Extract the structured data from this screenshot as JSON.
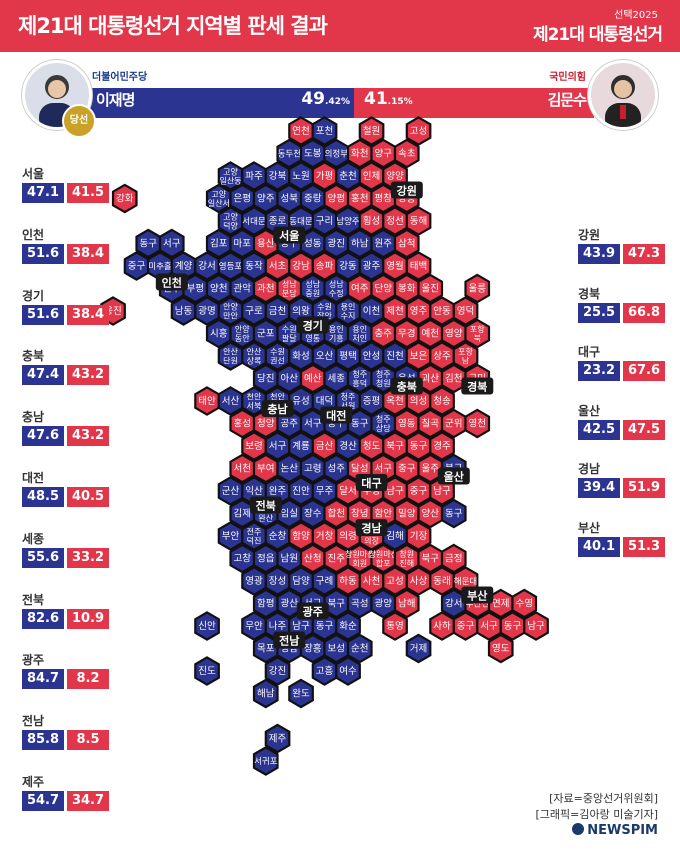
{
  "header": {
    "title": "제21대 대통령선거 지역별 판세 결과",
    "kicker": "선택2025",
    "brand": "제21대 대통령선거"
  },
  "candidates": {
    "left": {
      "party": "더불어민주당",
      "name": "이재명",
      "pct_int": "49",
      "pct_dec": ".42",
      "pct_unit": "%",
      "winner_badge": "당선"
    },
    "right": {
      "party": "국민의힘",
      "name": "김문수",
      "pct_int": "41",
      "pct_dec": ".15",
      "pct_unit": "%"
    }
  },
  "colors": {
    "dem": "#2b3591",
    "ppp": "#e2374a",
    "border": "#111111"
  },
  "regions_left": [
    {
      "name": "서울",
      "dem": "47.1",
      "ppp": "41.5"
    },
    {
      "name": "인천",
      "dem": "51.6",
      "ppp": "38.4"
    },
    {
      "name": "경기",
      "dem": "51.6",
      "ppp": "38.4"
    },
    {
      "name": "충북",
      "dem": "47.4",
      "ppp": "43.2"
    },
    {
      "name": "충남",
      "dem": "47.6",
      "ppp": "43.2"
    },
    {
      "name": "대전",
      "dem": "48.5",
      "ppp": "40.5"
    },
    {
      "name": "세종",
      "dem": "55.6",
      "ppp": "33.2"
    },
    {
      "name": "전북",
      "dem": "82.6",
      "ppp": "10.9"
    },
    {
      "name": "광주",
      "dem": "84.7",
      "ppp": "8.2"
    },
    {
      "name": "전남",
      "dem": "85.8",
      "ppp": "8.5"
    },
    {
      "name": "제주",
      "dem": "54.7",
      "ppp": "34.7"
    }
  ],
  "regions_right": [
    {
      "name": "강원",
      "dem": "43.9",
      "ppp": "47.3"
    },
    {
      "name": "경북",
      "dem": "25.5",
      "ppp": "66.8"
    },
    {
      "name": "대구",
      "dem": "23.2",
      "ppp": "67.6"
    },
    {
      "name": "울산",
      "dem": "42.5",
      "ppp": "47.5"
    },
    {
      "name": "경남",
      "dem": "39.4",
      "ppp": "51.9"
    },
    {
      "name": "부산",
      "dem": "40.1",
      "ppp": "51.3"
    }
  ],
  "map_labels": [
    "인천",
    "서울",
    "강원",
    "경기",
    "충북",
    "경북",
    "충남",
    "대전",
    "대구",
    "울산",
    "전북",
    "경남",
    "부산",
    "광주",
    "전남"
  ],
  "hexes": [
    [
      "연천",
      "r",
      0,
      10
    ],
    [
      "포천",
      "d",
      0,
      11
    ],
    [
      "철원",
      "r",
      0,
      13
    ],
    [
      "고성",
      "r",
      0,
      15
    ],
    [
      "동두천",
      "d",
      1,
      9.5
    ],
    [
      "도봉",
      "d",
      1,
      10.5
    ],
    [
      "의정부",
      "d",
      1,
      11.5
    ],
    [
      "화천",
      "r",
      1,
      12.5
    ],
    [
      "양구",
      "r",
      1,
      13.5
    ],
    [
      "속초",
      "r",
      1,
      14.5
    ],
    [
      "고양\n일산동",
      "d",
      2,
      7
    ],
    [
      "파주",
      "d",
      2,
      8
    ],
    [
      "강북",
      "d",
      2,
      9
    ],
    [
      "노원",
      "d",
      2,
      10
    ],
    [
      "가평",
      "r",
      2,
      11
    ],
    [
      "춘천",
      "d",
      2,
      12
    ],
    [
      "인제",
      "r",
      2,
      13
    ],
    [
      "양양",
      "r",
      2,
      14
    ],
    [
      "강화",
      "r",
      3,
      2.5
    ],
    [
      "고양\n일산서",
      "d",
      3,
      6.5
    ],
    [
      "은평",
      "d",
      3,
      7.5
    ],
    [
      "양주",
      "d",
      3,
      8.5
    ],
    [
      "성북",
      "d",
      3,
      9.5
    ],
    [
      "중랑",
      "d",
      3,
      10.5
    ],
    [
      "양평",
      "r",
      3,
      11.5
    ],
    [
      "홍천",
      "r",
      3,
      12.5
    ],
    [
      "평창",
      "r",
      3,
      13.5
    ],
    [
      "강릉",
      "r",
      3,
      14.5
    ],
    [
      "고양\n덕양",
      "d",
      4,
      7
    ],
    [
      "서대문",
      "d",
      4,
      8
    ],
    [
      "종로",
      "d",
      4,
      9
    ],
    [
      "동대문",
      "d",
      4,
      10
    ],
    [
      "구리",
      "d",
      4,
      11
    ],
    [
      "남양주",
      "d",
      4,
      12
    ],
    [
      "횡성",
      "r",
      4,
      13
    ],
    [
      "정선",
      "r",
      4,
      14
    ],
    [
      "동해",
      "r",
      4,
      15
    ],
    [
      "동구",
      "d",
      5,
      3.5
    ],
    [
      "서구",
      "d",
      5,
      4.5
    ],
    [
      "김포",
      "d",
      5,
      6.5
    ],
    [
      "마포",
      "d",
      5,
      7.5
    ],
    [
      "용산",
      "r",
      5,
      8.5
    ],
    [
      "중구",
      "d",
      5,
      9.5
    ],
    [
      "성동",
      "d",
      5,
      10.5
    ],
    [
      "광진",
      "d",
      5,
      11.5
    ],
    [
      "하남",
      "d",
      5,
      12.5
    ],
    [
      "원주",
      "d",
      5,
      13.5
    ],
    [
      "삼척",
      "r",
      5,
      14.5
    ],
    [
      "중구",
      "d",
      6,
      3
    ],
    [
      "미추홀",
      "d",
      6,
      4
    ],
    [
      "계양",
      "d",
      6,
      5
    ],
    [
      "강서",
      "d",
      6,
      6
    ],
    [
      "영등포",
      "d",
      6,
      7
    ],
    [
      "동작",
      "d",
      6,
      8
    ],
    [
      "서초",
      "r",
      6,
      9
    ],
    [
      "강남",
      "r",
      6,
      10
    ],
    [
      "송파",
      "r",
      6,
      11
    ],
    [
      "강동",
      "d",
      6,
      12
    ],
    [
      "광주",
      "d",
      6,
      13
    ],
    [
      "영월",
      "r",
      6,
      14
    ],
    [
      "태백",
      "r",
      6,
      15
    ],
    [
      "연수",
      "d",
      7,
      4.5
    ],
    [
      "부평",
      "d",
      7,
      5.5
    ],
    [
      "양천",
      "d",
      7,
      6.5
    ],
    [
      "관악",
      "d",
      7,
      7.5
    ],
    [
      "과천",
      "r",
      7,
      8.5
    ],
    [
      "성남\n분당",
      "r",
      7,
      9.5
    ],
    [
      "성남\n중원",
      "d",
      7,
      10.5
    ],
    [
      "성남\n수정",
      "d",
      7,
      11.5
    ],
    [
      "여주",
      "r",
      7,
      12.5
    ],
    [
      "단양",
      "r",
      7,
      13.5
    ],
    [
      "봉화",
      "r",
      7,
      14.5
    ],
    [
      "울진",
      "r",
      7,
      15.5
    ],
    [
      "울릉",
      "r",
      7,
      17.5
    ],
    [
      "옹진",
      "r",
      8,
      2
    ],
    [
      "남동",
      "d",
      8,
      5
    ],
    [
      "광명",
      "d",
      8,
      6
    ],
    [
      "안양\n만안",
      "d",
      8,
      7
    ],
    [
      "구로",
      "d",
      8,
      8
    ],
    [
      "금천",
      "d",
      8,
      9
    ],
    [
      "의왕",
      "d",
      8,
      10
    ],
    [
      "수원\n장안",
      "d",
      8,
      11
    ],
    [
      "용인\n수지",
      "d",
      8,
      12
    ],
    [
      "이천",
      "d",
      8,
      13
    ],
    [
      "제천",
      "r",
      8,
      14
    ],
    [
      "영주",
      "r",
      8,
      15
    ],
    [
      "안동",
      "r",
      8,
      16
    ],
    [
      "영덕",
      "r",
      8,
      17
    ],
    [
      "시흥",
      "d",
      9,
      6.5
    ],
    [
      "안양\n동안",
      "d",
      9,
      7.5
    ],
    [
      "군포",
      "d",
      9,
      8.5
    ],
    [
      "수원\n팔달",
      "d",
      9,
      9.5
    ],
    [
      "수원\n영통",
      "d",
      9,
      10.5
    ],
    [
      "용인\n기흥",
      "d",
      9,
      11.5
    ],
    [
      "용인\n처인",
      "d",
      9,
      12.5
    ],
    [
      "충주",
      "r",
      9,
      13.5
    ],
    [
      "무경",
      "r",
      9,
      14.5
    ],
    [
      "예천",
      "r",
      9,
      15.5
    ],
    [
      "영양",
      "r",
      9,
      16.5
    ],
    [
      "포항\n북",
      "r",
      9,
      17.5
    ],
    [
      "안산\n단원",
      "d",
      10,
      7
    ],
    [
      "안산\n상록",
      "d",
      10,
      8
    ],
    [
      "수원\n권선",
      "d",
      10,
      9
    ],
    [
      "화성",
      "d",
      10,
      10
    ],
    [
      "오산",
      "d",
      10,
      11
    ],
    [
      "평택",
      "d",
      10,
      12
    ],
    [
      "안성",
      "d",
      10,
      13
    ],
    [
      "진천",
      "d",
      10,
      14
    ],
    [
      "보은",
      "r",
      10,
      15
    ],
    [
      "상주",
      "r",
      10,
      16
    ],
    [
      "포항\n남",
      "r",
      10,
      17
    ],
    [
      "당진",
      "d",
      11,
      8.5
    ],
    [
      "아산",
      "d",
      11,
      9.5
    ],
    [
      "예산",
      "r",
      11,
      10.5
    ],
    [
      "세종",
      "d",
      11,
      11.5
    ],
    [
      "청주\n흥덕",
      "d",
      11,
      12.5
    ],
    [
      "청주\n청원",
      "d",
      11,
      13.5
    ],
    [
      "음성",
      "d",
      11,
      14.5
    ],
    [
      "괴산",
      "r",
      11,
      15.5
    ],
    [
      "김천",
      "r",
      11,
      16.5
    ],
    [
      "구미",
      "r",
      11,
      17.5
    ],
    [
      "태안",
      "r",
      12,
      6
    ],
    [
      "서산",
      "d",
      12,
      7
    ],
    [
      "천안\n서북",
      "d",
      12,
      8
    ],
    [
      "천안\n동남",
      "d",
      12,
      9
    ],
    [
      "유성",
      "d",
      12,
      10
    ],
    [
      "대덕",
      "d",
      12,
      11
    ],
    [
      "청주\n서원",
      "d",
      12,
      12
    ],
    [
      "증평",
      "d",
      12,
      13
    ],
    [
      "옥천",
      "r",
      12,
      14
    ],
    [
      "의성",
      "r",
      12,
      15
    ],
    [
      "청송",
      "r",
      12,
      16
    ],
    [
      "홍성",
      "r",
      13,
      7.5
    ],
    [
      "청양",
      "r",
      13,
      8.5
    ],
    [
      "공주",
      "d",
      13,
      9.5
    ],
    [
      "서구",
      "d",
      13,
      10.5
    ],
    [
      "중구",
      "d",
      13,
      11.5
    ],
    [
      "동구",
      "d",
      13,
      12.5
    ],
    [
      "청주\n상당",
      "d",
      13,
      13.5
    ],
    [
      "영동",
      "r",
      13,
      14.5
    ],
    [
      "칠곡",
      "r",
      13,
      15.5
    ],
    [
      "군위",
      "r",
      13,
      16.5
    ],
    [
      "영천",
      "r",
      13,
      17.5
    ],
    [
      "보령",
      "r",
      14,
      8
    ],
    [
      "서구",
      "d",
      14,
      9
    ],
    [
      "계룡",
      "d",
      14,
      10
    ],
    [
      "금산",
      "r",
      14,
      11
    ],
    [
      "경산",
      "d",
      14,
      12
    ],
    [
      "청도",
      "r",
      14,
      13
    ],
    [
      "북구",
      "r",
      14,
      14
    ],
    [
      "동구",
      "r",
      14,
      15
    ],
    [
      "경주",
      "r",
      14,
      16
    ],
    [
      "서천",
      "r",
      15,
      7.5
    ],
    [
      "부여",
      "r",
      15,
      8.5
    ],
    [
      "논산",
      "d",
      15,
      9.5
    ],
    [
      "고령",
      "d",
      15,
      10.5
    ],
    [
      "성주",
      "d",
      15,
      11.5
    ],
    [
      "달성",
      "r",
      15,
      12.5
    ],
    [
      "서구",
      "r",
      15,
      13.5
    ],
    [
      "중구",
      "r",
      15,
      14.5
    ],
    [
      "울주",
      "r",
      15,
      15.5
    ],
    [
      "북구",
      "d",
      15,
      16.5
    ],
    [
      "군산",
      "d",
      16,
      7
    ],
    [
      "익산",
      "d",
      16,
      8
    ],
    [
      "완주",
      "d",
      16,
      9
    ],
    [
      "진안",
      "d",
      16,
      10
    ],
    [
      "무주",
      "d",
      16,
      11
    ],
    [
      "달서",
      "r",
      16,
      12
    ],
    [
      "수성",
      "r",
      16,
      13
    ],
    [
      "남구",
      "r",
      16,
      14
    ],
    [
      "중구",
      "r",
      16,
      15
    ],
    [
      "남구",
      "r",
      16,
      16
    ],
    [
      "김제",
      "d",
      17,
      7.5
    ],
    [
      "전주\n완산",
      "d",
      17,
      8.5
    ],
    [
      "임실",
      "d",
      17,
      9.5
    ],
    [
      "장수",
      "d",
      17,
      10.5
    ],
    [
      "합천",
      "r",
      17,
      11.5
    ],
    [
      "창녕",
      "r",
      17,
      12.5
    ],
    [
      "함안",
      "r",
      17,
      13.5
    ],
    [
      "밀양",
      "r",
      17,
      14.5
    ],
    [
      "양산",
      "r",
      17,
      15.5
    ],
    [
      "동구",
      "d",
      17,
      16.5
    ],
    [
      "부안",
      "d",
      18,
      7
    ],
    [
      "전주\n덕진",
      "d",
      18,
      8
    ],
    [
      "순창",
      "d",
      18,
      9
    ],
    [
      "함양",
      "r",
      18,
      10
    ],
    [
      "거창",
      "r",
      18,
      11
    ],
    [
      "의령",
      "r",
      18,
      12
    ],
    [
      "창원\n의창",
      "r",
      18,
      13
    ],
    [
      "김해",
      "d",
      18,
      14
    ],
    [
      "기장",
      "r",
      18,
      15
    ],
    [
      "고창",
      "d",
      19,
      7.5
    ],
    [
      "정읍",
      "d",
      19,
      8.5
    ],
    [
      "남원",
      "d",
      19,
      9.5
    ],
    [
      "산청",
      "r",
      19,
      10.5
    ],
    [
      "진주",
      "r",
      19,
      11.5
    ],
    [
      "창원마산\n회원",
      "r",
      19,
      12.5
    ],
    [
      "창원마산\n합포",
      "r",
      19,
      13.5
    ],
    [
      "창원\n진해",
      "r",
      19,
      14.5
    ],
    [
      "북구",
      "r",
      19,
      15.5
    ],
    [
      "금정",
      "r",
      19,
      16.5
    ],
    [
      "영광",
      "d",
      20,
      8
    ],
    [
      "장성",
      "d",
      20,
      9
    ],
    [
      "담양",
      "d",
      20,
      10
    ],
    [
      "구례",
      "d",
      20,
      11
    ],
    [
      "하동",
      "r",
      20,
      12
    ],
    [
      "사천",
      "r",
      20,
      13
    ],
    [
      "고성",
      "r",
      20,
      14
    ],
    [
      "사상",
      "r",
      20,
      15
    ],
    [
      "동래",
      "r",
      20,
      16
    ],
    [
      "해운대",
      "r",
      20,
      17
    ],
    [
      "함평",
      "d",
      21,
      8.5
    ],
    [
      "광산",
      "d",
      21,
      9.5
    ],
    [
      "서구",
      "d",
      21,
      10.5
    ],
    [
      "북구",
      "d",
      21,
      11.5
    ],
    [
      "곡성",
      "d",
      21,
      12.5
    ],
    [
      "광양",
      "d",
      21,
      13.5
    ],
    [
      "남해",
      "r",
      21,
      14.5
    ],
    [
      "강서",
      "d",
      21,
      16.5
    ],
    [
      "부산진",
      "r",
      21,
      17.5
    ],
    [
      "연제",
      "r",
      21,
      18.5
    ],
    [
      "수영",
      "r",
      21,
      19.5
    ],
    [
      "신안",
      "d",
      22,
      6
    ],
    [
      "무안",
      "d",
      22,
      8
    ],
    [
      "나주",
      "d",
      22,
      9
    ],
    [
      "남구",
      "d",
      22,
      10
    ],
    [
      "동구",
      "d",
      22,
      11
    ],
    [
      "화순",
      "d",
      22,
      12
    ],
    [
      "통영",
      "r",
      22,
      14
    ],
    [
      "사하",
      "r",
      22,
      16
    ],
    [
      "중구",
      "r",
      22,
      17
    ],
    [
      "서구",
      "r",
      22,
      18
    ],
    [
      "동구",
      "r",
      22,
      19
    ],
    [
      "남구",
      "r",
      22,
      20
    ],
    [
      "목포",
      "d",
      23,
      8.5
    ],
    [
      "영암",
      "d",
      23,
      9.5
    ],
    [
      "장흥",
      "d",
      23,
      10.5
    ],
    [
      "보성",
      "d",
      23,
      11.5
    ],
    [
      "순천",
      "d",
      23,
      12.5
    ],
    [
      "거제",
      "d",
      23,
      15
    ],
    [
      "영도",
      "r",
      23,
      18.5
    ],
    [
      "진도",
      "d",
      24,
      6
    ],
    [
      "강진",
      "d",
      24,
      9
    ],
    [
      "고흥",
      "d",
      24,
      11
    ],
    [
      "여수",
      "d",
      24,
      12
    ],
    [
      "해남",
      "d",
      25,
      8.5
    ],
    [
      "완도",
      "d",
      25,
      10
    ],
    [
      "제주",
      "d",
      27,
      9
    ],
    [
      "서귀포",
      "d",
      28,
      8.5
    ]
  ],
  "source": {
    "line1": "[자료=중앙선거위원회]",
    "line2": "[그래픽=김아랑 미술기자]",
    "logo": "NEWSPIM"
  }
}
